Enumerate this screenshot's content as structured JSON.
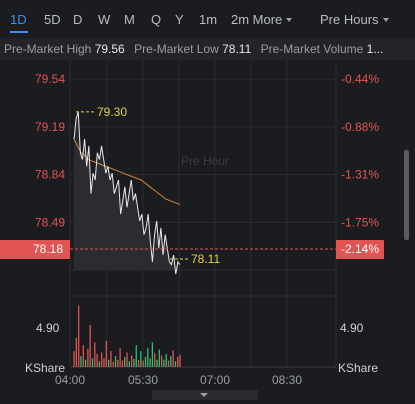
{
  "tabs": [
    {
      "label": "1D",
      "active": true
    },
    {
      "label": "5D"
    },
    {
      "label": "D"
    },
    {
      "label": "W"
    },
    {
      "label": "M"
    },
    {
      "label": "Q"
    },
    {
      "label": "Y"
    },
    {
      "label": "1m"
    },
    {
      "label": "2m More"
    }
  ],
  "session_selector": "Pre Hours",
  "summary": {
    "high_label": "Pre-Market High",
    "high_value": "79.56",
    "low_label": "Pre-Market Low",
    "low_value": "78.11",
    "volume_label": "Pre-Market Volume",
    "volume_value": "1..."
  },
  "watermark": "Pre Hour",
  "current_price": "78.18",
  "current_pct": "-2.14%",
  "max_annotation": "79.30",
  "min_annotation": "78.11",
  "volume_tick": "4.90",
  "volume_tick_right": "4.90",
  "volume_unit_left": "KShare",
  "volume_unit_right": "KShare",
  "colors": {
    "up": "#e25353",
    "down": "#2fbf71",
    "accent": "#3f8df0",
    "line": "#e8e8e8",
    "avg": "#d08a3a",
    "annot": "#e5d14a"
  },
  "chart_data": {
    "type": "line",
    "price_ticks": [
      "79.54",
      "79.19",
      "78.84",
      "78.49"
    ],
    "pct_ticks": [
      "-0.44%",
      "-0.88%",
      "-1.31%",
      "-1.75%"
    ],
    "time_ticks": [
      "04:00",
      "05:30",
      "07:00",
      "08:30"
    ],
    "ylim": [
      78.14,
      79.68
    ],
    "price_series": [
      79.1,
      79.25,
      79.3,
      79.0,
      78.95,
      79.1,
      78.9,
      79.05,
      78.7,
      78.85,
      78.8,
      79.0,
      78.95,
      79.05,
      78.95,
      78.85,
      78.9,
      78.8,
      78.85,
      78.7,
      78.75,
      78.8,
      78.55,
      78.65,
      78.75,
      78.6,
      78.7,
      78.8,
      78.65,
      78.7,
      78.6,
      78.5,
      78.55,
      78.4,
      78.45,
      78.55,
      78.35,
      78.2,
      78.4,
      78.5,
      78.3,
      78.45,
      78.25,
      78.4,
      78.3,
      78.2,
      78.18,
      78.25,
      78.11,
      78.2,
      78.18
    ],
    "avg_series": [
      79.1,
      79.05,
      79.0,
      78.98,
      78.95,
      78.94,
      78.93,
      78.92,
      78.91,
      78.9,
      78.89,
      78.88,
      78.87,
      78.86,
      78.85,
      78.84,
      78.83,
      78.82,
      78.81,
      78.8,
      78.78,
      78.76,
      78.74,
      78.72,
      78.7,
      78.68,
      78.66,
      78.65,
      78.64,
      78.63,
      78.62
    ],
    "volume_ylim": [
      0,
      9.8
    ],
    "volume_series": [
      {
        "v": 2.2,
        "up": true
      },
      {
        "v": 4.0,
        "up": true
      },
      {
        "v": 8.5,
        "up": true
      },
      {
        "v": 1.5,
        "up": false
      },
      {
        "v": 3.0,
        "up": true
      },
      {
        "v": 1.0,
        "up": false
      },
      {
        "v": 2.5,
        "up": true
      },
      {
        "v": 5.8,
        "up": true
      },
      {
        "v": 1.2,
        "up": false
      },
      {
        "v": 3.4,
        "up": true
      },
      {
        "v": 1.8,
        "up": true
      },
      {
        "v": 0.8,
        "up": false
      },
      {
        "v": 2.0,
        "up": true
      },
      {
        "v": 1.2,
        "up": true
      },
      {
        "v": 3.6,
        "up": true
      },
      {
        "v": 1.0,
        "up": false
      },
      {
        "v": 2.2,
        "up": true
      },
      {
        "v": 0.7,
        "up": true
      },
      {
        "v": 1.5,
        "up": false
      },
      {
        "v": 1.0,
        "up": true
      },
      {
        "v": 2.6,
        "up": true
      },
      {
        "v": 0.9,
        "up": true
      },
      {
        "v": 1.4,
        "up": false
      },
      {
        "v": 2.0,
        "up": true
      },
      {
        "v": 0.8,
        "up": false
      },
      {
        "v": 1.6,
        "up": true
      },
      {
        "v": 1.1,
        "up": false
      },
      {
        "v": 3.0,
        "up": false
      },
      {
        "v": 1.0,
        "up": true
      },
      {
        "v": 2.2,
        "up": false
      },
      {
        "v": 0.9,
        "up": true
      },
      {
        "v": 1.4,
        "up": false
      },
      {
        "v": 2.6,
        "up": false
      },
      {
        "v": 1.2,
        "up": false
      },
      {
        "v": 3.4,
        "up": false
      },
      {
        "v": 1.9,
        "up": true
      },
      {
        "v": 1.0,
        "up": false
      },
      {
        "v": 2.4,
        "up": false
      },
      {
        "v": 1.6,
        "up": true
      },
      {
        "v": 1.0,
        "up": false
      },
      {
        "v": 1.8,
        "up": false
      },
      {
        "v": 0.9,
        "up": true
      },
      {
        "v": 1.5,
        "up": false
      },
      {
        "v": 2.3,
        "up": true
      },
      {
        "v": 0.8,
        "up": false
      },
      {
        "v": 1.4,
        "up": true
      },
      {
        "v": 1.7,
        "up": true
      }
    ]
  }
}
